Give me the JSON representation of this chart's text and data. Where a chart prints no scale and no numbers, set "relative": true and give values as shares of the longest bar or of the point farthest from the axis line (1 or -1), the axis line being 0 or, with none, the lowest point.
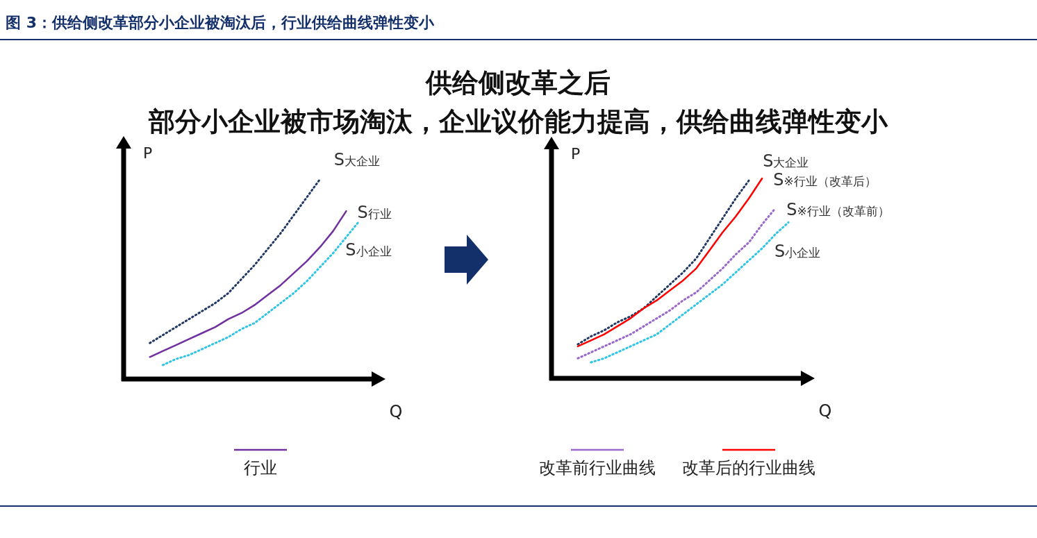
{
  "chart_data": [
    {
      "type": "line",
      "relative": true,
      "title": "图 3：供给侧改革部分小企业被淘汰后，行业供给曲线弹性变小",
      "xlabel": "Q",
      "ylabel": "P",
      "legend": "bottom",
      "categories": [
        null,
        null,
        null,
        null,
        null,
        null,
        null,
        null,
        null,
        null,
        null,
        null,
        null,
        null,
        null,
        null,
        null
      ],
      "series": [
        {
          "color": "#203864",
          "line_style": "dotted",
          "values": [
            0.18,
            0.22,
            0.26,
            0.3,
            0.34,
            0.38,
            0.43,
            0.5,
            0.57,
            0.65,
            0.73,
            0.82,
            0.91,
            1.0,
            null,
            null,
            null
          ]
        },
        {
          "name": "行业",
          "color": "#7030a0",
          "line_style": "solid",
          "values": [
            0.11,
            0.14,
            0.17,
            0.2,
            0.23,
            0.26,
            0.3,
            0.33,
            0.37,
            0.42,
            0.47,
            0.53,
            0.59,
            0.66,
            0.74,
            0.84,
            null
          ]
        },
        {
          "color": "#2ec4e6",
          "line_style": "dotted",
          "values": [
            null,
            0.07,
            0.1,
            0.12,
            0.15,
            0.18,
            0.21,
            0.25,
            0.28,
            0.33,
            0.38,
            0.43,
            0.49,
            0.56,
            0.63,
            0.71,
            0.79
          ]
        }
      ],
      "annotations": [
        "供给侧改革之后",
        "部分小企业被市场淘汰，企业议价能力提高，供给曲线弹性变小",
        "S大企业",
        "S行业",
        "S小企业"
      ]
    },
    {
      "type": "line",
      "relative": true,
      "xlabel": "Q",
      "ylabel": "P",
      "legend": "bottom",
      "categories": [
        null,
        null,
        null,
        null,
        null,
        null,
        null,
        null,
        null,
        null,
        null,
        null,
        null,
        null,
        null,
        null,
        null
      ],
      "series": [
        {
          "color": "#203864",
          "line_style": "dotted",
          "values": [
            0.17,
            0.21,
            0.24,
            0.28,
            0.31,
            0.35,
            0.41,
            0.47,
            0.53,
            0.6,
            0.7,
            0.8,
            0.9,
            0.99,
            null,
            null,
            null
          ]
        },
        {
          "name": "改革后的行业曲线",
          "color": "#ff0000",
          "line_style": "solid",
          "values": [
            0.16,
            0.19,
            0.22,
            0.26,
            0.3,
            0.35,
            0.39,
            0.44,
            0.49,
            0.55,
            0.64,
            0.73,
            0.81,
            0.9,
            1.0,
            null,
            null
          ]
        },
        {
          "name": "改革前行业曲线",
          "color": "#9966cc",
          "line_style": "dotted",
          "values": [
            0.1,
            0.13,
            0.16,
            0.19,
            0.22,
            0.26,
            0.3,
            0.34,
            0.39,
            0.43,
            0.49,
            0.55,
            0.62,
            0.68,
            0.77,
            0.85,
            null
          ]
        },
        {
          "color": "#2ec4e6",
          "line_style": "dotted",
          "values": [
            null,
            0.08,
            0.1,
            0.13,
            0.16,
            0.19,
            0.22,
            0.27,
            0.32,
            0.37,
            0.42,
            0.47,
            0.53,
            0.59,
            0.65,
            0.72,
            0.78
          ]
        }
      ],
      "annotations": [
        "S大企业",
        "S※行业（改革后）",
        "S※行业（改革前）",
        "S小企业"
      ]
    }
  ]
}
